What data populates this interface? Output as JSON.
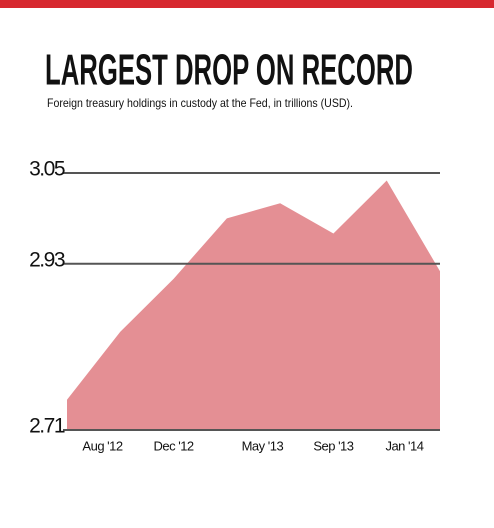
{
  "chart_data": {
    "type": "area",
    "title": "LARGEST DROP ON RECORD",
    "subtitle": "Foreign treasury holdings in custody at the Fed, in trillions (USD).",
    "x": [
      "2012-06",
      "2012-09",
      "2012-12",
      "2013-03",
      "2013-06",
      "2013-09",
      "2013-12",
      "2014-03"
    ],
    "values": [
      2.75,
      2.84,
      2.91,
      2.99,
      3.01,
      2.97,
      3.04,
      2.92
    ],
    "color": "#e48f94",
    "xlim": [
      "2012-06",
      "2014-03"
    ],
    "xticks": [
      {
        "value": "2012-08",
        "label": "Aug '12"
      },
      {
        "value": "2012-12",
        "label": "Dec '12"
      },
      {
        "value": "2013-05",
        "label": "May '13"
      },
      {
        "value": "2013-09",
        "label": "Sep '13"
      },
      {
        "value": "2014-01",
        "label": "Jan '14"
      }
    ],
    "ylim": [
      2.71,
      3.05
    ],
    "yticks": [
      2.71,
      2.93,
      3.05
    ],
    "grid": true
  }
}
